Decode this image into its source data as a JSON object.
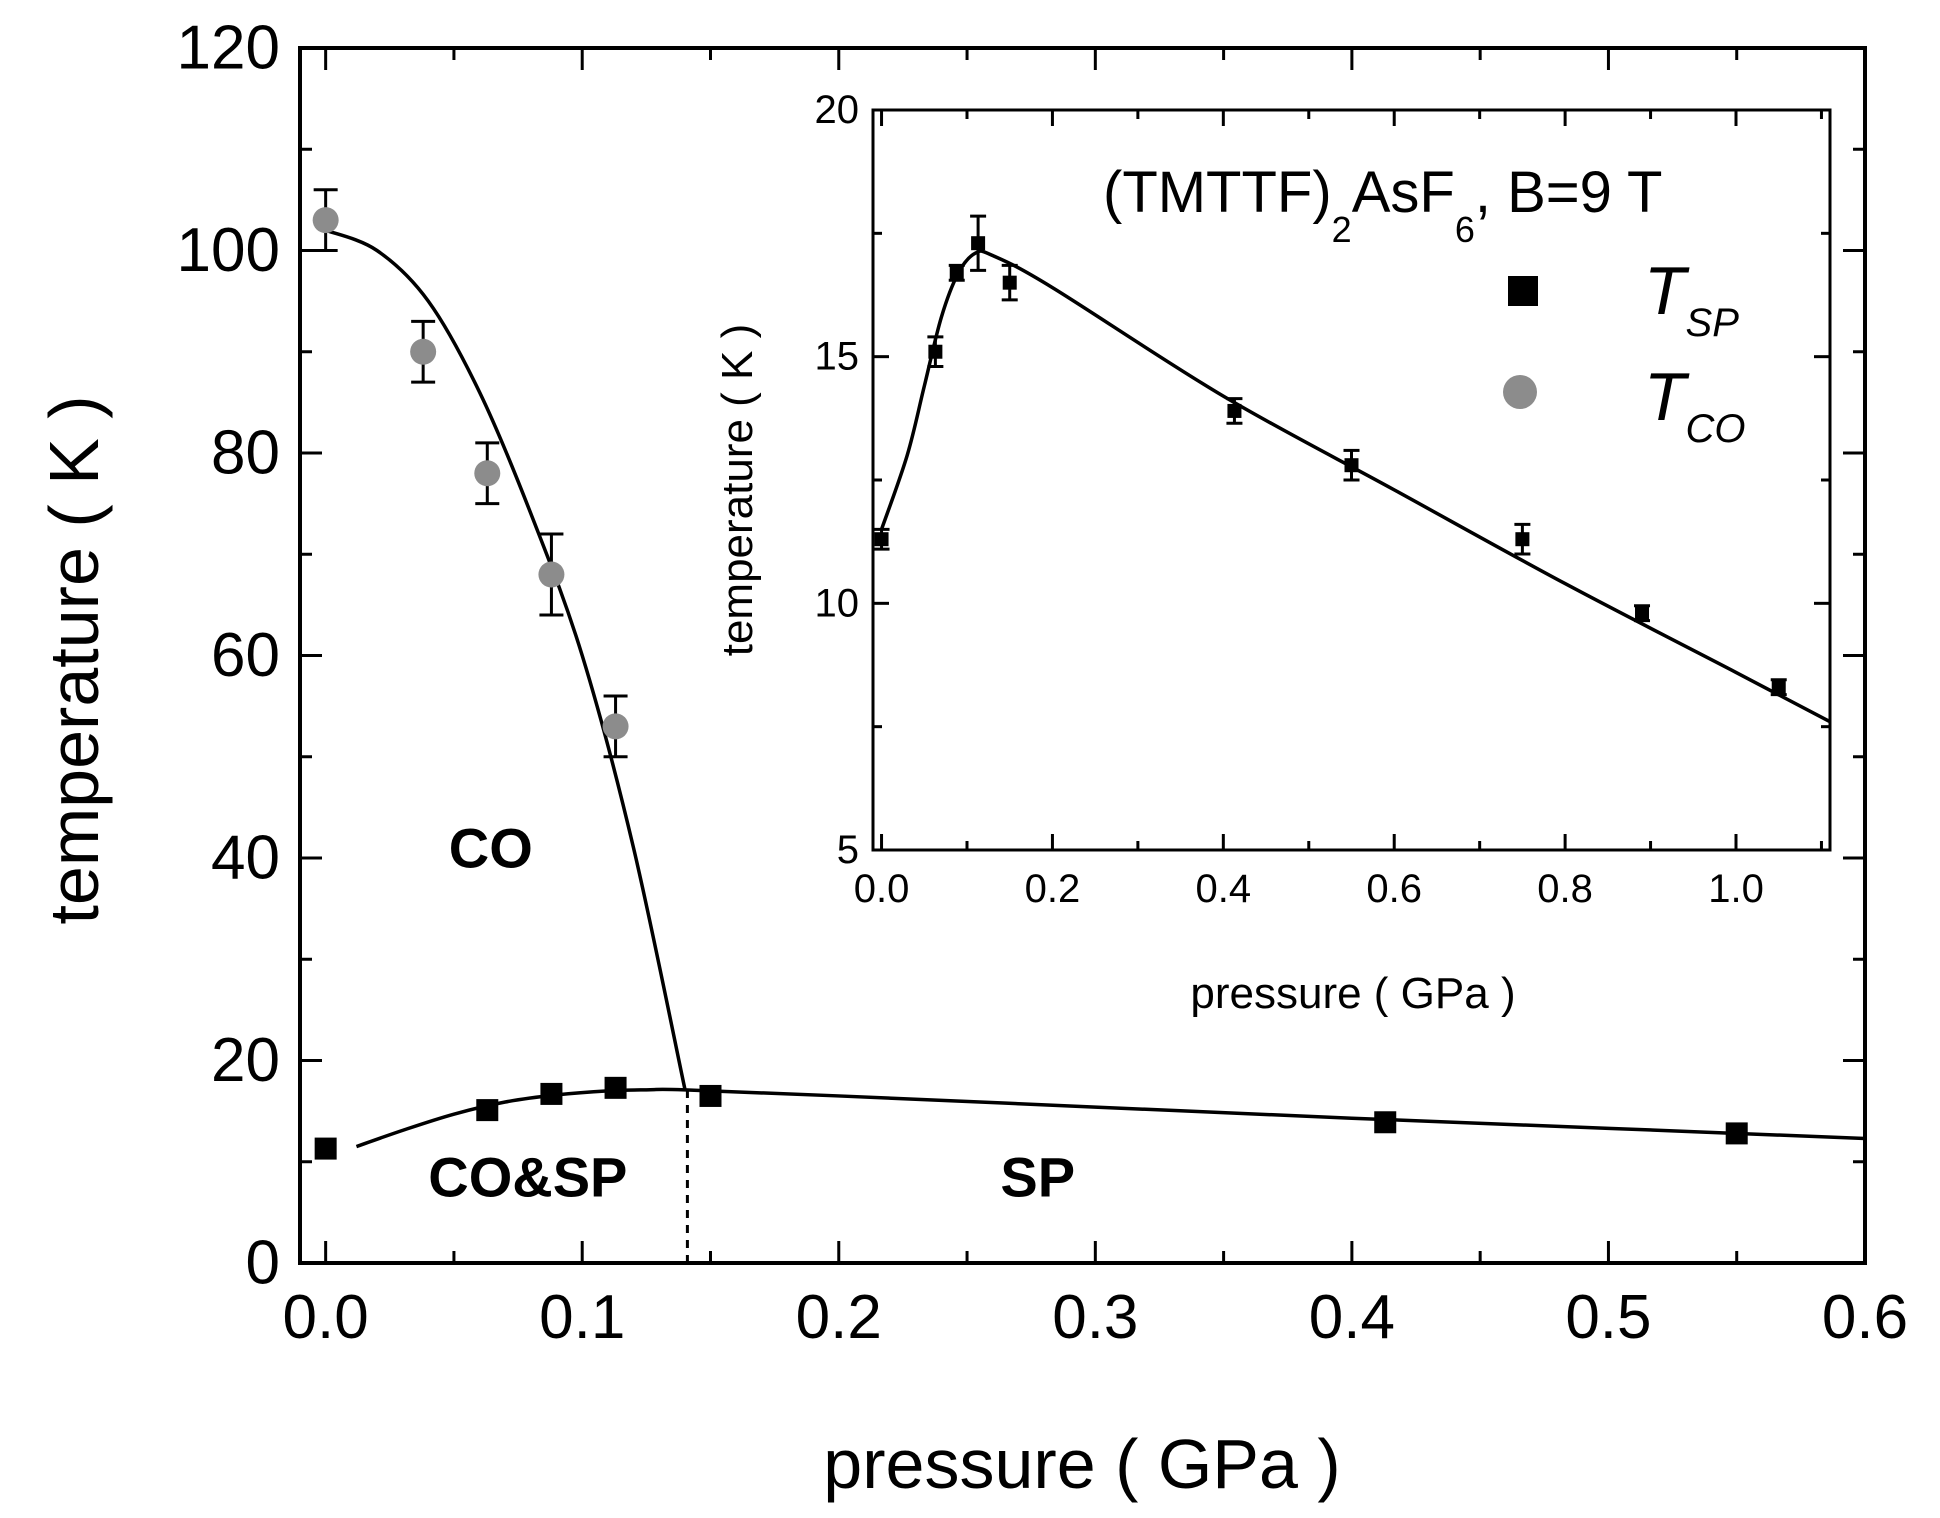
{
  "chart_data": [
    {
      "id": "main",
      "type": "scatter",
      "title": "",
      "xlabel": "pressure ( GPa )",
      "ylabel": "temperature ( K )",
      "xlim": [
        -0.01,
        0.6
      ],
      "ylim": [
        0,
        120
      ],
      "xticks": [
        0.0,
        0.1,
        0.2,
        0.3,
        0.4,
        0.5,
        0.6
      ],
      "xtick_labels": [
        "0.0",
        "0.1",
        "0.2",
        "0.3",
        "0.4",
        "0.5",
        "0.6"
      ],
      "yticks": [
        0,
        20,
        40,
        60,
        80,
        100,
        120
      ],
      "ytick_labels": [
        "0",
        "20",
        "40",
        "60",
        "80",
        "100",
        "120"
      ],
      "grid": false,
      "series": [
        {
          "name": "T_CO",
          "marker": "circle",
          "color": "#8c8c8c",
          "points": [
            {
              "x": 0.0,
              "y": 103,
              "err": 3
            },
            {
              "x": 0.038,
              "y": 90,
              "err": 3
            },
            {
              "x": 0.063,
              "y": 78,
              "err": 3
            },
            {
              "x": 0.088,
              "y": 68,
              "err": 4
            },
            {
              "x": 0.113,
              "y": 53,
              "err": 3
            }
          ]
        },
        {
          "name": "T_SP",
          "marker": "square",
          "color": "#000000",
          "points": [
            {
              "x": 0.0,
              "y": 11.3
            },
            {
              "x": 0.063,
              "y": 15.1
            },
            {
              "x": 0.088,
              "y": 16.7
            },
            {
              "x": 0.113,
              "y": 17.3
            },
            {
              "x": 0.15,
              "y": 16.5
            },
            {
              "x": 0.413,
              "y": 13.9
            },
            {
              "x": 0.55,
              "y": 12.8
            }
          ]
        }
      ],
      "fit_curves": [
        {
          "name": "CO boundary",
          "points": [
            [
              0.0,
              102
            ],
            [
              0.02,
              100
            ],
            [
              0.04,
              95
            ],
            [
              0.06,
              86
            ],
            [
              0.08,
              74
            ],
            [
              0.1,
              60
            ],
            [
              0.12,
              41
            ],
            [
              0.14,
              17.2
            ]
          ]
        },
        {
          "name": "SP boundary",
          "points": [
            [
              0.012,
              11.5
            ],
            [
              0.03,
              13.1
            ],
            [
              0.05,
              14.7
            ],
            [
              0.07,
              15.9
            ],
            [
              0.09,
              16.6
            ],
            [
              0.11,
              17.0
            ],
            [
              0.125,
              17.1
            ],
            [
              0.14,
              17.1
            ],
            [
              0.2,
              16.5
            ],
            [
              0.3,
              15.4
            ],
            [
              0.4,
              14.3
            ],
            [
              0.5,
              13.3
            ],
            [
              0.6,
              12.3
            ]
          ]
        }
      ],
      "phase_boundary_dashed": {
        "x": 0.141,
        "y_range": [
          0,
          17.2
        ]
      },
      "regions": [
        {
          "label": "CO",
          "x": 0.048,
          "y": 41
        },
        {
          "label": "CO&SP",
          "x": 0.04,
          "y": 8.5
        },
        {
          "label": "SP",
          "x": 0.263,
          "y": 8.5
        }
      ]
    },
    {
      "id": "inset",
      "type": "scatter",
      "title": "(TMTTF)2AsF6, B=9 T",
      "xlabel": "pressure ( GPa )",
      "ylabel": "temperature ( K )",
      "xlim": [
        -0.01,
        1.11
      ],
      "ylim": [
        5,
        20
      ],
      "xticks": [
        0.0,
        0.2,
        0.4,
        0.6,
        0.8,
        1.0
      ],
      "xtick_labels": [
        "0.0",
        "0.2",
        "0.4",
        "0.6",
        "0.8",
        "1.0"
      ],
      "yticks": [
        5,
        10,
        15,
        20
      ],
      "ytick_labels": [
        "5",
        "10",
        "15",
        "20"
      ],
      "grid": false,
      "legend_position": "top-right",
      "series": [
        {
          "name": "T_SP",
          "marker": "square",
          "color": "#000000",
          "points": [
            {
              "x": 0.0,
              "y": 11.3,
              "err": 0.2
            },
            {
              "x": 0.063,
              "y": 15.1,
              "err": 0.3
            },
            {
              "x": 0.088,
              "y": 16.7,
              "err": 0.15
            },
            {
              "x": 0.113,
              "y": 17.3,
              "err": 0.55
            },
            {
              "x": 0.15,
              "y": 16.5,
              "err": 0.35
            },
            {
              "x": 0.413,
              "y": 13.9,
              "err": 0.25
            },
            {
              "x": 0.55,
              "y": 12.8,
              "err": 0.3
            },
            {
              "x": 0.75,
              "y": 11.3,
              "err": 0.3
            },
            {
              "x": 0.89,
              "y": 9.8,
              "err": 0.15
            },
            {
              "x": 1.05,
              "y": 8.3,
              "err": 0.15
            }
          ]
        }
      ],
      "fit_curves": [
        {
          "name": "SP boundary",
          "points": [
            [
              0.0,
              11.5
            ],
            [
              0.03,
              13.0
            ],
            [
              0.05,
              14.4
            ],
            [
              0.07,
              15.8
            ],
            [
              0.09,
              16.7
            ],
            [
              0.11,
              17.1
            ],
            [
              0.13,
              17.05
            ],
            [
              0.2,
              16.4
            ],
            [
              0.4,
              14.2
            ],
            [
              0.6,
              12.3
            ],
            [
              0.8,
              10.4
            ],
            [
              1.0,
              8.6
            ],
            [
              1.11,
              7.6
            ]
          ]
        }
      ]
    }
  ],
  "legend": {
    "title_prefix": "(TMTTF)",
    "title_sub1": "2",
    "title_mid": "AsF",
    "title_sub2": "6",
    "title_suffix": ", B=9 T",
    "items": [
      {
        "symbol": "T",
        "subscript": "SP",
        "marker": "square",
        "color": "#000000"
      },
      {
        "symbol": "T",
        "subscript": "CO",
        "marker": "circle",
        "color": "#8c8c8c"
      }
    ]
  }
}
